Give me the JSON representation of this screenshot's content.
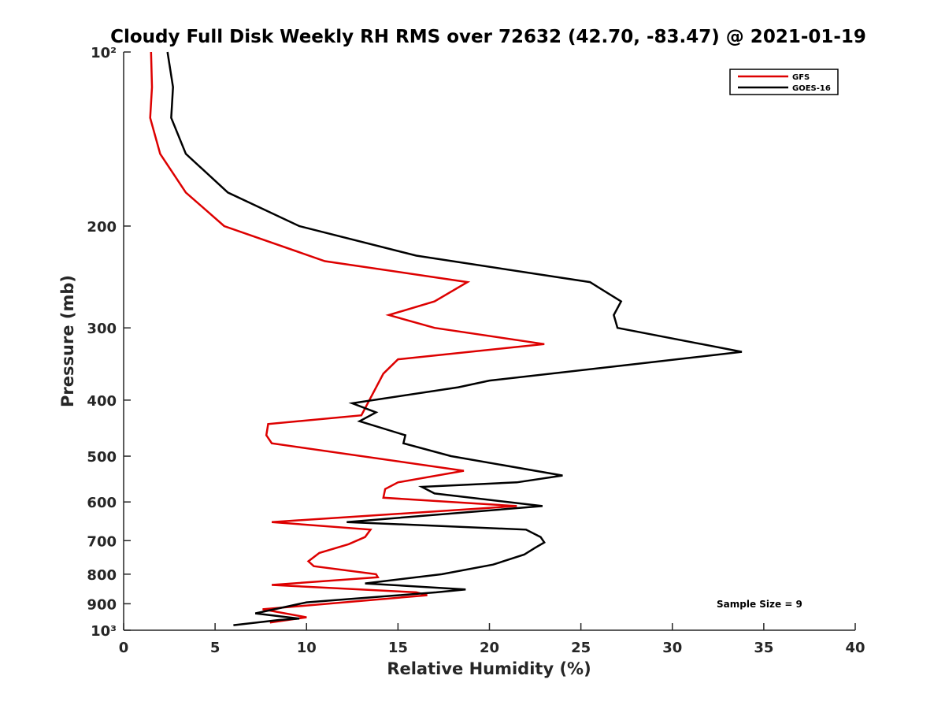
{
  "chart_data": {
    "type": "line",
    "title": "Cloudy Full Disk Weekly RH RMS over 72632 (42.70, -83.47) @ 2021-01-19",
    "xlabel": "Relative Humidity (%)",
    "ylabel": "Pressure (mb)",
    "xlim": [
      0,
      40
    ],
    "ylim": [
      100,
      1000
    ],
    "y_scale": "log",
    "y_reversed": true,
    "x_ticks": [
      0,
      5,
      10,
      15,
      20,
      25,
      30,
      35,
      40
    ],
    "x_tick_labels": [
      "0",
      "5",
      "10",
      "15",
      "20",
      "25",
      "30",
      "35",
      "40"
    ],
    "y_ticks": [
      100,
      200,
      300,
      400,
      500,
      600,
      700,
      800,
      900,
      1000
    ],
    "y_tick_labels": [
      "10²",
      "200",
      "300",
      "400",
      "500",
      "600",
      "700",
      "800",
      "900",
      "10³"
    ],
    "grid": false,
    "legend_position": "top-right",
    "annotation": "Sample Size = 9",
    "series": [
      {
        "name": "GFS",
        "color": "#dd0000",
        "points": [
          [
            1.5,
            100
          ],
          [
            1.55,
            115
          ],
          [
            1.45,
            130
          ],
          [
            2.0,
            150
          ],
          [
            3.4,
            175
          ],
          [
            5.5,
            200
          ],
          [
            11.0,
            230
          ],
          [
            18.8,
            250
          ],
          [
            17.0,
            270
          ],
          [
            14.5,
            285
          ],
          [
            17.0,
            300
          ],
          [
            23.0,
            320
          ],
          [
            15.0,
            340
          ],
          [
            14.2,
            360
          ],
          [
            13.0,
            425
          ],
          [
            7.9,
            440
          ],
          [
            7.8,
            460
          ],
          [
            8.1,
            475
          ],
          [
            18.6,
            530
          ],
          [
            15.0,
            555
          ],
          [
            14.3,
            570
          ],
          [
            14.2,
            590
          ],
          [
            21.5,
            610
          ],
          [
            8.1,
            650
          ],
          [
            13.5,
            670
          ],
          [
            13.2,
            690
          ],
          [
            12.3,
            710
          ],
          [
            10.7,
            735
          ],
          [
            10.1,
            760
          ],
          [
            10.4,
            775
          ],
          [
            13.8,
            800
          ],
          [
            13.9,
            810
          ],
          [
            8.1,
            835
          ],
          [
            16.0,
            860
          ],
          [
            16.6,
            870
          ],
          [
            7.6,
            920
          ],
          [
            10.0,
            950
          ],
          [
            8.0,
            970
          ]
        ]
      },
      {
        "name": "GOES-16",
        "color": "#000000",
        "points": [
          [
            2.4,
            100
          ],
          [
            2.7,
            115
          ],
          [
            2.6,
            130
          ],
          [
            3.4,
            150
          ],
          [
            5.7,
            175
          ],
          [
            9.6,
            200
          ],
          [
            16.0,
            225
          ],
          [
            25.5,
            250
          ],
          [
            27.2,
            270
          ],
          [
            26.8,
            285
          ],
          [
            27.0,
            300
          ],
          [
            33.8,
            330
          ],
          [
            28.5,
            345
          ],
          [
            20.0,
            370
          ],
          [
            18.3,
            380
          ],
          [
            12.5,
            405
          ],
          [
            13.8,
            420
          ],
          [
            12.9,
            435
          ],
          [
            15.4,
            460
          ],
          [
            15.3,
            475
          ],
          [
            17.9,
            500
          ],
          [
            24.0,
            540
          ],
          [
            21.5,
            555
          ],
          [
            16.3,
            565
          ],
          [
            17.0,
            580
          ],
          [
            22.9,
            610
          ],
          [
            12.2,
            650
          ],
          [
            22.0,
            670
          ],
          [
            22.8,
            690
          ],
          [
            23.0,
            705
          ],
          [
            22.5,
            720
          ],
          [
            21.9,
            740
          ],
          [
            20.2,
            770
          ],
          [
            17.4,
            800
          ],
          [
            13.2,
            830
          ],
          [
            18.7,
            850
          ],
          [
            17.1,
            860
          ],
          [
            10.0,
            895
          ],
          [
            7.2,
            935
          ],
          [
            9.6,
            955
          ],
          [
            8.5,
            960
          ],
          [
            6.0,
            980
          ]
        ]
      }
    ]
  }
}
